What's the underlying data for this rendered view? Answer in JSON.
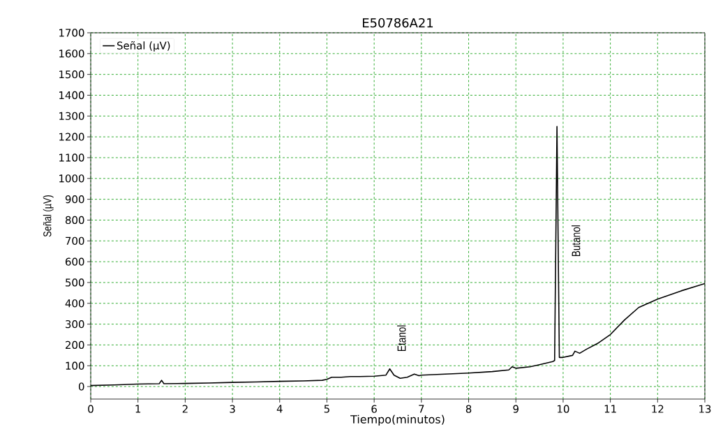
{
  "chart_data": {
    "type": "line",
    "title": "E50786A21",
    "xlabel": "Tiempo(minutos)",
    "ylabel": "Señal (µV)",
    "x": [
      0,
      0.5,
      1,
      1.45,
      1.5,
      1.55,
      2,
      2.5,
      3,
      3.5,
      4,
      4.5,
      4.9,
      5.0,
      5.1,
      5.3,
      5.5,
      5.7,
      6,
      6.25,
      6.33,
      6.42,
      6.55,
      6.7,
      6.85,
      6.95,
      7,
      7.5,
      8,
      8.5,
      8.85,
      8.92,
      9.0,
      9.3,
      9.5,
      9.78,
      9.82,
      9.87,
      9.92,
      10.0,
      10.2,
      10.25,
      10.35,
      10.5,
      10.75,
      11,
      11.3,
      11.6,
      12,
      12.5,
      13
    ],
    "series": [
      {
        "name": "Señal (µV)",
        "color": "#000000",
        "values": [
          5,
          8,
          12,
          14,
          30,
          14,
          15,
          17,
          20,
          22,
          25,
          27,
          30,
          35,
          45,
          45,
          48,
          48,
          50,
          55,
          85,
          55,
          40,
          45,
          60,
          52,
          55,
          60,
          65,
          72,
          80,
          95,
          88,
          95,
          105,
          120,
          125,
          1250,
          140,
          140,
          150,
          170,
          160,
          180,
          210,
          250,
          320,
          380,
          420,
          460,
          495
        ]
      }
    ],
    "annotations": [
      "Etanol",
      "Butanol"
    ],
    "xlim": [
      0,
      13
    ],
    "ylim": [
      -60,
      1700
    ],
    "xticks": [
      0,
      1,
      2,
      3,
      4,
      5,
      6,
      7,
      8,
      9,
      10,
      11,
      12,
      13
    ],
    "yticks": [
      0,
      100,
      200,
      300,
      400,
      500,
      600,
      700,
      800,
      900,
      1000,
      1100,
      1200,
      1300,
      1400,
      1500,
      1600,
      1700
    ],
    "grid": true,
    "legend": "top left",
    "marker": "none",
    "line_style": "solid"
  }
}
